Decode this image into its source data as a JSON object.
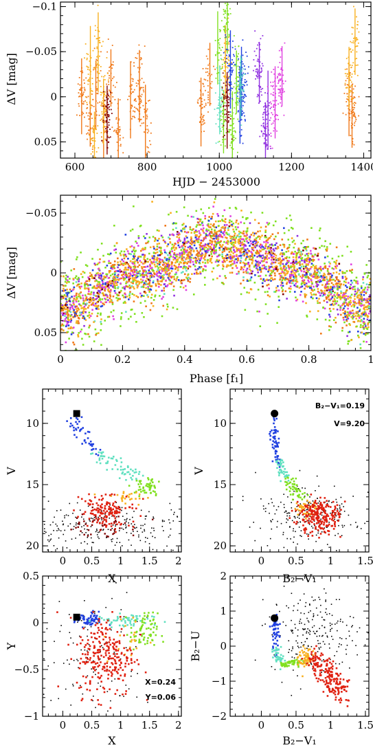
{
  "chart_data": [
    {
      "type": "scatter",
      "id": "lightcurve",
      "xlabel": "HJD − 2453000",
      "ylabel": "ΔV [mag]",
      "xlim": [
        560,
        1420
      ],
      "ylim": [
        0.068,
        -0.105
      ],
      "xticks": [
        600,
        800,
        1000,
        1200,
        1400
      ],
      "xtick_labels": [
        "600",
        "800",
        "1000",
        "1200",
        "1400"
      ],
      "yticks": [
        -0.1,
        -0.05,
        0,
        0.05
      ],
      "ytick_labels": [
        "−0.1",
        "−0.05",
        "0",
        "0.05"
      ],
      "series": [
        {
          "color": "#f07818",
          "values": [
            [
              620,
              0.0
            ],
            [
              640,
              0.02
            ],
            [
              660,
              -0.01
            ],
            [
              680,
              0.03
            ],
            [
              700,
              -0.02
            ],
            [
              720,
              0.04
            ],
            [
              760,
              0.0
            ],
            [
              780,
              -0.01
            ],
            [
              800,
              0.03
            ],
            [
              950,
              0.01
            ],
            [
              970,
              -0.02
            ],
            [
              1360,
              0.0
            ],
            [
              1370,
              0.02
            ]
          ]
        },
        {
          "color": "#f8b020",
          "values": [
            [
              640,
              -0.03
            ],
            [
              650,
              0.06
            ],
            [
              665,
              -0.05
            ],
            [
              680,
              0.01
            ],
            [
              1020,
              -0.04
            ],
            [
              1360,
              -0.02
            ],
            [
              1375,
              -0.06
            ]
          ]
        },
        {
          "color": "#80e020",
          "values": [
            [
              1000,
              -0.05
            ],
            [
              1010,
              0.03
            ],
            [
              1020,
              -0.09
            ],
            [
              1035,
              0.04
            ],
            [
              1050,
              -0.02
            ]
          ]
        },
        {
          "color": "#2040e0",
          "values": [
            [
              1030,
              -0.03
            ],
            [
              1060,
              0.01
            ],
            [
              1065,
              -0.02
            ]
          ]
        },
        {
          "color": "#9030e0",
          "values": [
            [
              1110,
              -0.03
            ],
            [
              1125,
              0.04
            ],
            [
              1130,
              0.02
            ]
          ]
        },
        {
          "color": "#e040e0",
          "values": [
            [
              1150,
              0.01
            ],
            [
              1170,
              -0.02
            ]
          ]
        },
        {
          "color": "#60e0c0",
          "values": [
            [
              1000,
              0.0
            ],
            [
              1060,
              -0.01
            ]
          ]
        },
        {
          "color": "#800000",
          "values": [
            [
              690,
              0.02
            ],
            [
              1020,
              0.01
            ]
          ]
        }
      ]
    },
    {
      "type": "scatter",
      "id": "phased",
      "xlabel": "Phase [f₁]",
      "ylabel": "ΔV [mag]",
      "xlim": [
        0,
        1
      ],
      "ylim": [
        0.065,
        -0.065
      ],
      "xticks": [
        0,
        0.2,
        0.4,
        0.6,
        0.8,
        1
      ],
      "xtick_labels": [
        "0",
        "0.2",
        "0.4",
        "0.6",
        "0.8",
        "1"
      ],
      "yticks": [
        -0.05,
        0,
        0.05
      ],
      "ytick_labels": [
        "−0.05",
        "0",
        "0.05"
      ],
      "trend": [
        [
          0,
          0.03
        ],
        [
          0.25,
          0.0
        ],
        [
          0.5,
          -0.025
        ],
        [
          0.75,
          -0.005
        ],
        [
          1,
          0.03
        ]
      ]
    },
    {
      "type": "scatter",
      "id": "cmd-x",
      "xlabel": "X",
      "ylabel": "V",
      "xlim": [
        -0.35,
        2.05
      ],
      "ylim": [
        20.5,
        7.2
      ],
      "xticks": [
        0,
        0.5,
        1,
        1.5,
        2
      ],
      "xtick_labels": [
        "0",
        "0.5",
        "1",
        "1.5",
        "2"
      ],
      "yticks": [
        10,
        15,
        20
      ],
      "ytick_labels": [
        "10",
        "15",
        "20"
      ],
      "marker": {
        "x": 0.24,
        "y": 9.2,
        "shape": "square"
      },
      "annotations": []
    },
    {
      "type": "scatter",
      "id": "cmd-bv",
      "xlabel": "B₂−V₁",
      "ylabel": "V",
      "xlim": [
        -0.45,
        1.55
      ],
      "ylim": [
        20.5,
        7.2
      ],
      "xticks": [
        0,
        0.5,
        1,
        1.5
      ],
      "xtick_labels": [
        "0",
        "0.5",
        "1",
        "1.5"
      ],
      "yticks": [
        10,
        15,
        20
      ],
      "ytick_labels": [
        "10",
        "15",
        "20"
      ],
      "marker": {
        "x": 0.19,
        "y": 9.2,
        "shape": "circle"
      },
      "annotations": [
        "B₂−V₁=0.19",
        "V=9.20"
      ]
    },
    {
      "type": "scatter",
      "id": "xy",
      "xlabel": "X",
      "ylabel": "Y",
      "xlim": [
        -0.35,
        2.05
      ],
      "ylim": [
        -1.0,
        0.5
      ],
      "xticks": [
        0,
        0.5,
        1,
        1.5,
        2
      ],
      "xtick_labels": [
        "0",
        "0.5",
        "1",
        "1.5",
        "2"
      ],
      "yticks": [
        -1,
        -0.5,
        0,
        0.5
      ],
      "ytick_labels": [
        "−1",
        "−0.5",
        "0",
        "0.5"
      ],
      "marker": {
        "x": 0.24,
        "y": 0.06,
        "shape": "square"
      },
      "annotations": [
        "X=0.24",
        "Y=0.06"
      ]
    },
    {
      "type": "scatter",
      "id": "ccd",
      "xlabel": "B₂−V₁",
      "ylabel": "B₂−U",
      "xlim": [
        -0.45,
        1.55
      ],
      "ylim": [
        -2,
        2
      ],
      "xticks": [
        0,
        0.5,
        1,
        1.5
      ],
      "xtick_labels": [
        "0",
        "0.5",
        "1",
        "1.5"
      ],
      "yticks": [
        -2,
        -1,
        0,
        1,
        2
      ],
      "ytick_labels": [
        "−2",
        "−1",
        "0",
        "1",
        "2"
      ],
      "marker": {
        "x": 0.19,
        "y": 0.8,
        "shape": "circle"
      },
      "annotations": []
    }
  ],
  "colors": {
    "orange": "#f07818",
    "light-orange": "#f8b020",
    "green": "#80e020",
    "blue": "#2040e0",
    "purple": "#9030e0",
    "magenta": "#e040e0",
    "cyan": "#60e0c0",
    "dark-red": "#800000",
    "red": "#e02010",
    "black": "#000000"
  }
}
